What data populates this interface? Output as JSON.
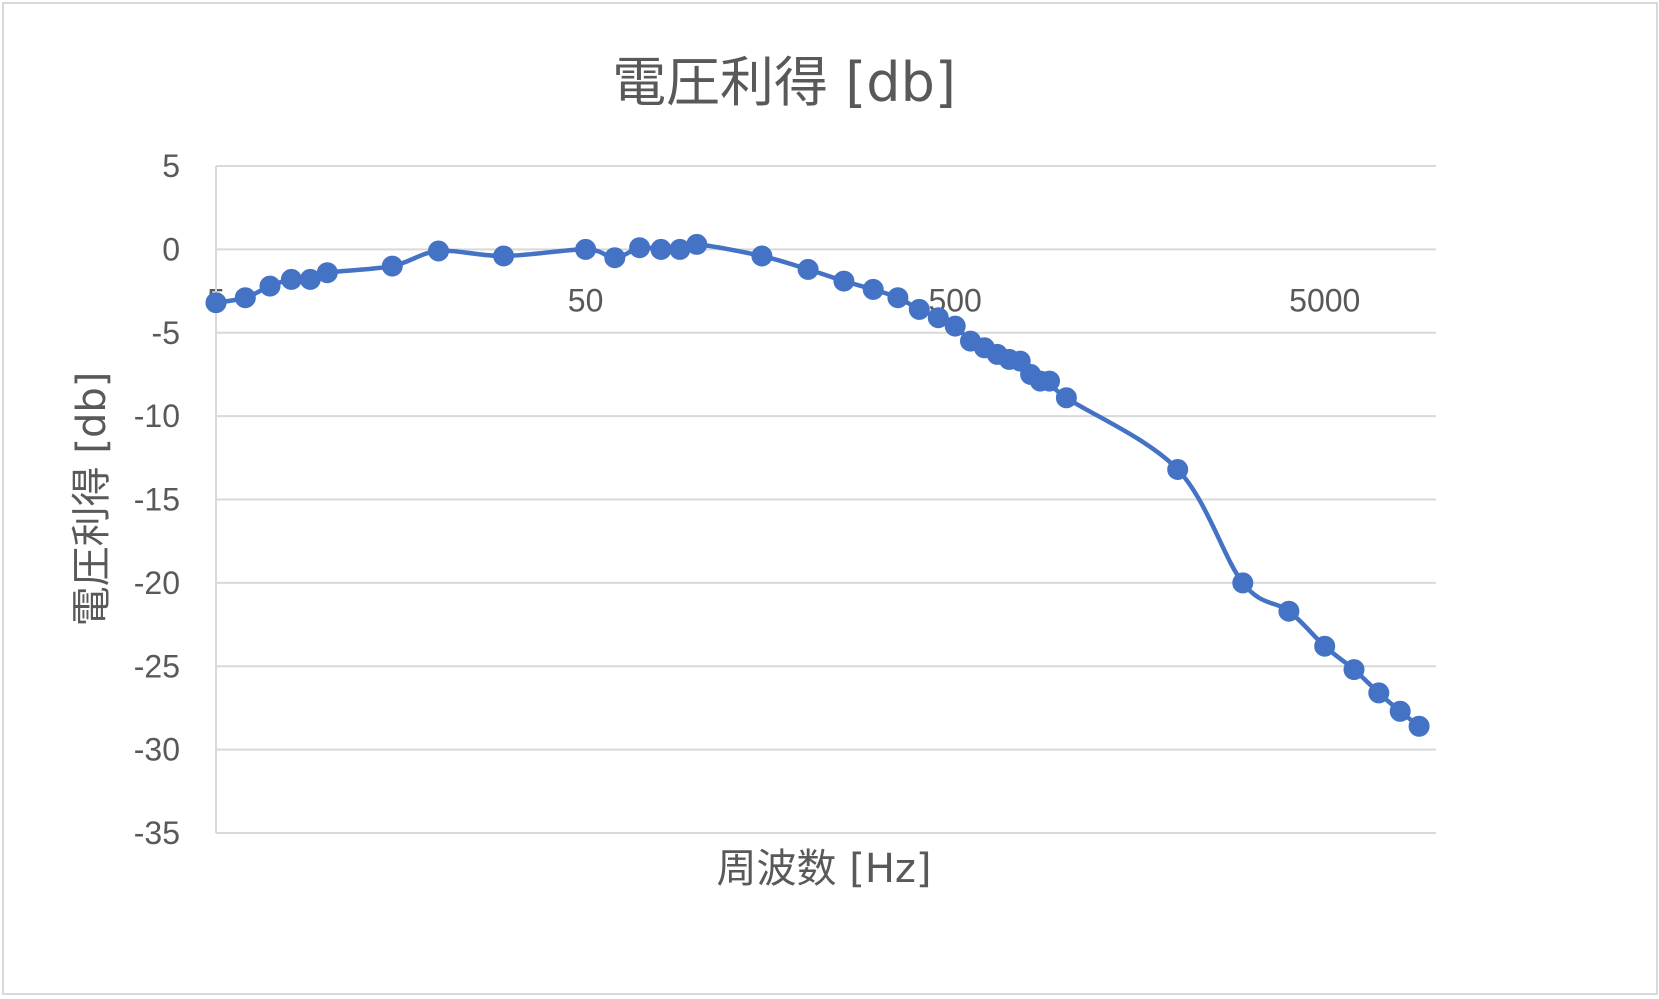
{
  "chart_data": {
    "type": "line",
    "title": "電圧利得 [db]",
    "xlabel": "周波数 [Hz]",
    "ylabel": "電圧利得 [db]",
    "x_scale": "log",
    "xlim": [
      5,
      10000
    ],
    "ylim": [
      -35,
      5
    ],
    "y_ticks": [
      5,
      0,
      -5,
      -10,
      -15,
      -20,
      -25,
      -30,
      -35
    ],
    "y_tick_labels": [
      "5",
      "0",
      "-5",
      "-10",
      "-15",
      "-20",
      "-25",
      "-30",
      "-35"
    ],
    "x_ticks": [
      5,
      50,
      500,
      5000
    ],
    "x_tick_labels": [
      "5",
      "50",
      "500",
      "5000"
    ],
    "grid": true,
    "series_color": "#4472c4",
    "series": [
      {
        "x": [
          5,
          6,
          7,
          8,
          9,
          10,
          15,
          20,
          30,
          50,
          60,
          70,
          80,
          90,
          100,
          150,
          200,
          250,
          300,
          350,
          400,
          450,
          500,
          550,
          600,
          650,
          700,
          750,
          800,
          850,
          900,
          1000,
          2000,
          3000,
          4000,
          5000,
          6000,
          7000,
          8000,
          9000
        ],
        "y": [
          -3.2,
          -2.9,
          -2.2,
          -1.8,
          -1.8,
          -1.4,
          -1.0,
          -0.1,
          -0.4,
          0.0,
          -0.5,
          0.1,
          0.0,
          0.0,
          0.3,
          -0.4,
          -1.2,
          -1.9,
          -2.4,
          -2.9,
          -3.6,
          -4.1,
          -4.6,
          -5.5,
          -5.9,
          -6.3,
          -6.6,
          -6.7,
          -7.5,
          -7.9,
          -7.9,
          -8.9,
          -13.2,
          -20.0,
          -21.7,
          -23.8,
          -25.2,
          -26.6,
          -27.7,
          -28.6
        ]
      }
    ]
  }
}
